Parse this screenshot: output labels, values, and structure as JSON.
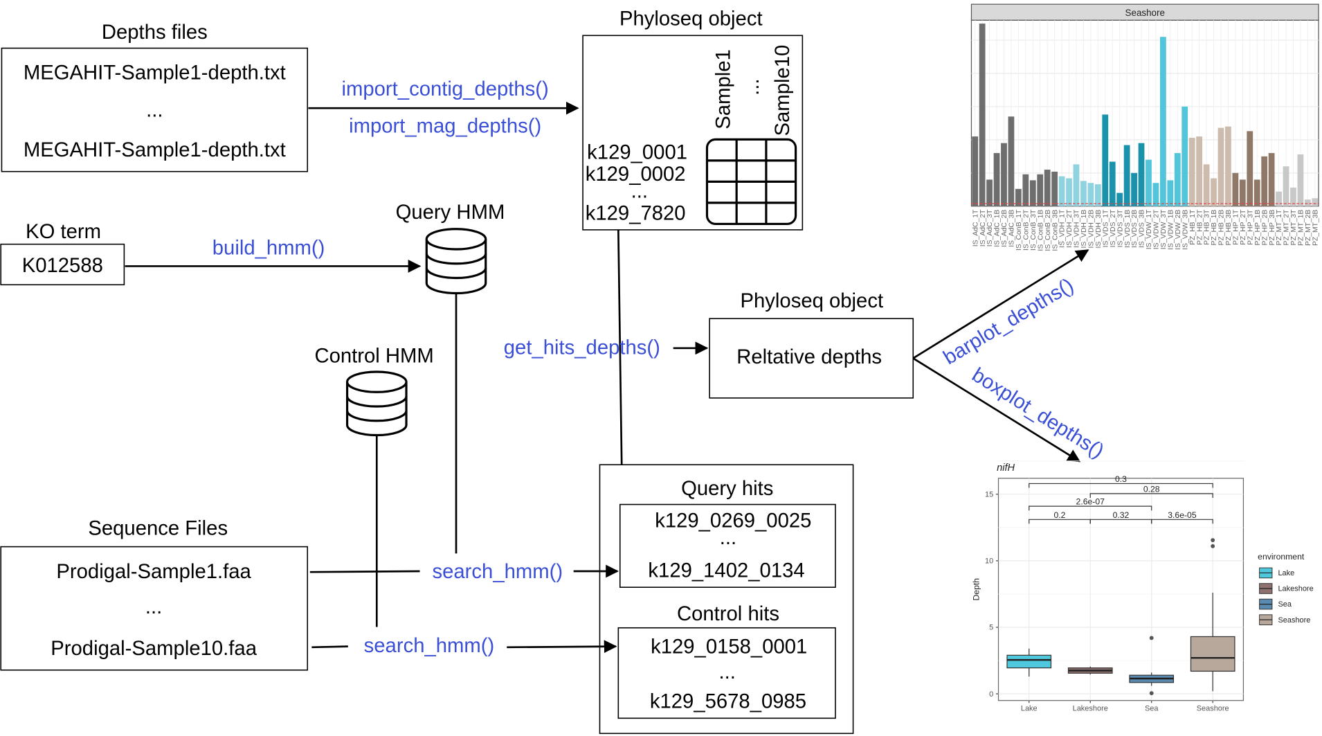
{
  "depths_files": {
    "title": "Depths files",
    "line1": "MEGAHIT-Sample1-depth.txt",
    "ellipsis": "...",
    "line2": "MEGAHIT-Sample1-depth.txt"
  },
  "import_functions": {
    "contig": "import_contig_depths()",
    "mag": "import_mag_depths()"
  },
  "phyloseq_top": {
    "title": "Phyloseq object",
    "col1": "Sample1",
    "col_ellipsis": "...",
    "col2": "Sample10",
    "row1": "k129_0001",
    "row2": "k129_0002",
    "row_ellipsis": "...",
    "row3": "k129_7820"
  },
  "ko_term": {
    "title": "KO term",
    "value": "K012588"
  },
  "build_hmm": "build_hmm()",
  "query_hmm": {
    "title": "Query HMM"
  },
  "control_hmm": {
    "title": "Control HMM"
  },
  "get_hits_depths": "get_hits_depths()",
  "phyloseq_relative": {
    "title": "Phyloseq object",
    "label": "Reltative depths"
  },
  "plot_functions": {
    "barplot": "barplot_depths()",
    "boxplot": "boxplot_depths()"
  },
  "sequence_files": {
    "title": "Sequence Files",
    "line1": "Prodigal-Sample1.faa",
    "ellipsis": "...",
    "line2": "Prodigal-Sample10.faa"
  },
  "search_hmm_query": "search_hmm()",
  "search_hmm_control": "search_hmm()",
  "query_hits": {
    "title": "Query hits",
    "line1": "k129_0269_0025",
    "ellipsis": "...",
    "line2": "k129_1402_0134"
  },
  "control_hits": {
    "title": "Control hits",
    "line1": "k129_0158_0001",
    "ellipsis": "...",
    "line2": "k129_5678_0985"
  },
  "colors": {
    "function_text": "#3a4fd6",
    "lake": "#4fc8dd",
    "lakeshore": "#8f7170",
    "sea": "#5a8ab0",
    "seashore": "#b8a89c"
  },
  "chart_data": [
    {
      "type": "bar",
      "title": "Seashore",
      "categories": [
        "IS_AdC_1T",
        "IS_AdC_2T",
        "IS_AdC_3T",
        "IS_AdC_1B",
        "IS_AdC_2B",
        "IS_AdC_3B",
        "IS_ConB_1T",
        "IS_ConB_2T",
        "IS_ConB_3T",
        "IS_ConB_1B",
        "IS_ConB_2B",
        "IS_ConB_3B",
        "IS_VDH_1T",
        "IS_VDH_2T",
        "IS_VDH_3T",
        "IS_VDH_1B",
        "IS_VDH_2B",
        "IS_VDH_3B",
        "IS_VDS_1T",
        "IS_VDS_2T",
        "IS_VDS_3T",
        "IS_VDS_1B",
        "IS_VDS_2B",
        "IS_VDS_3B",
        "IS_VDW_1T",
        "IS_VDW_2T",
        "IS_VDW_3T",
        "IS_VDW_1B",
        "IS_VDW_2B",
        "IS_VDW_3B",
        "PZ_HB_1T",
        "PZ_HB_2T",
        "PZ_HB_3T",
        "PZ_HB_1B",
        "PZ_HB_2B",
        "PZ_HB_3B",
        "PZ_HP_1T",
        "PZ_HP_2T",
        "PZ_HP_3T",
        "PZ_HP_1B",
        "PZ_HP_2B",
        "PZ_HP_3B",
        "PZ_MT_1T",
        "PZ_MT_2T",
        "PZ_MT_3T",
        "PZ_MT_1B",
        "PZ_MT_2B",
        "PZ_MT_3B"
      ],
      "values": [
        10.5,
        27.5,
        4.0,
        8.0,
        9.5,
        13.5,
        2.6,
        4.8,
        3.9,
        4.8,
        5.5,
        5.2,
        4.5,
        4.2,
        6.3,
        3.8,
        3.5,
        3.3,
        13.8,
        6.7,
        2.0,
        9.2,
        5.0,
        9.5,
        7.0,
        3.5,
        25.5,
        3.9,
        8.0,
        15.0,
        10.3,
        10.5,
        6.3,
        4.2,
        11.8,
        12.0,
        5.0,
        4.0,
        11.3,
        4.0,
        7.5,
        8.0,
        2.2,
        6.0,
        2.8,
        7.8,
        1.0,
        1.2
      ],
      "colors": [
        "#6e6e6e",
        "#6e6e6e",
        "#6e6e6e",
        "#6e6e6e",
        "#6e6e6e",
        "#6e6e6e",
        "#6e6e6e",
        "#6e6e6e",
        "#6e6e6e",
        "#6e6e6e",
        "#6e6e6e",
        "#6e6e6e",
        "#8fd3e0",
        "#8fd3e0",
        "#8fd3e0",
        "#8fd3e0",
        "#8fd3e0",
        "#8fd3e0",
        "#1a92ab",
        "#1a92ab",
        "#1a92ab",
        "#1a92ab",
        "#1a92ab",
        "#1a92ab",
        "#52c5da",
        "#52c5da",
        "#52c5da",
        "#52c5da",
        "#52c5da",
        "#52c5da",
        "#cdbcad",
        "#cdbcad",
        "#cdbcad",
        "#cdbcad",
        "#cdbcad",
        "#cdbcad",
        "#8f7868",
        "#8f7868",
        "#8f7868",
        "#8f7868",
        "#8f7868",
        "#8f7868",
        "#c8c8c8",
        "#c8c8c8",
        "#c8c8c8",
        "#c8c8c8",
        "#c8c8c8",
        "#c8c8c8"
      ],
      "ylim": [
        0,
        28
      ]
    },
    {
      "type": "box",
      "title": "nifH",
      "ylabel": "Depth",
      "categories": [
        "Lake",
        "Lakeshore",
        "Sea",
        "Seashore"
      ],
      "yticks": [
        0,
        5,
        10,
        15
      ],
      "ylim": [
        -0.5,
        16.2
      ],
      "boxes": [
        {
          "name": "Lake",
          "min": 1.3,
          "q1": 1.95,
          "median": 2.55,
          "q3": 2.9,
          "max": 3.4,
          "outliers": []
        },
        {
          "name": "Lakeshore",
          "min": 1.45,
          "q1": 1.55,
          "median": 1.75,
          "q3": 1.95,
          "max": 2.05,
          "outliers": []
        },
        {
          "name": "Sea",
          "min": 0.6,
          "q1": 0.85,
          "median": 1.15,
          "q3": 1.4,
          "max": 1.6,
          "outliers": [
            0.05,
            4.2
          ]
        },
        {
          "name": "Seashore",
          "min": 0.2,
          "q1": 1.7,
          "median": 2.7,
          "q3": 4.3,
          "max": 7.6,
          "outliers": [
            11.1,
            11.55
          ]
        }
      ],
      "comparisons": [
        {
          "pair": [
            "Lake",
            "Seashore"
          ],
          "label": "0.3"
        },
        {
          "pair": [
            "Lakeshore",
            "Seashore"
          ],
          "label": "0.28"
        },
        {
          "pair": [
            "Lake",
            "Sea"
          ],
          "label": "2.6e-07"
        },
        {
          "pair": [
            "Lake",
            "Lakeshore"
          ],
          "label": "0.2"
        },
        {
          "pair": [
            "Lakeshore",
            "Sea"
          ],
          "label": "0.32"
        },
        {
          "pair": [
            "Sea",
            "Seashore"
          ],
          "label": "3.6e-05"
        }
      ],
      "legend": {
        "title": "environment",
        "entries": [
          "Lake",
          "Lakeshore",
          "Sea",
          "Seashore"
        ],
        "placement": "right"
      }
    }
  ]
}
